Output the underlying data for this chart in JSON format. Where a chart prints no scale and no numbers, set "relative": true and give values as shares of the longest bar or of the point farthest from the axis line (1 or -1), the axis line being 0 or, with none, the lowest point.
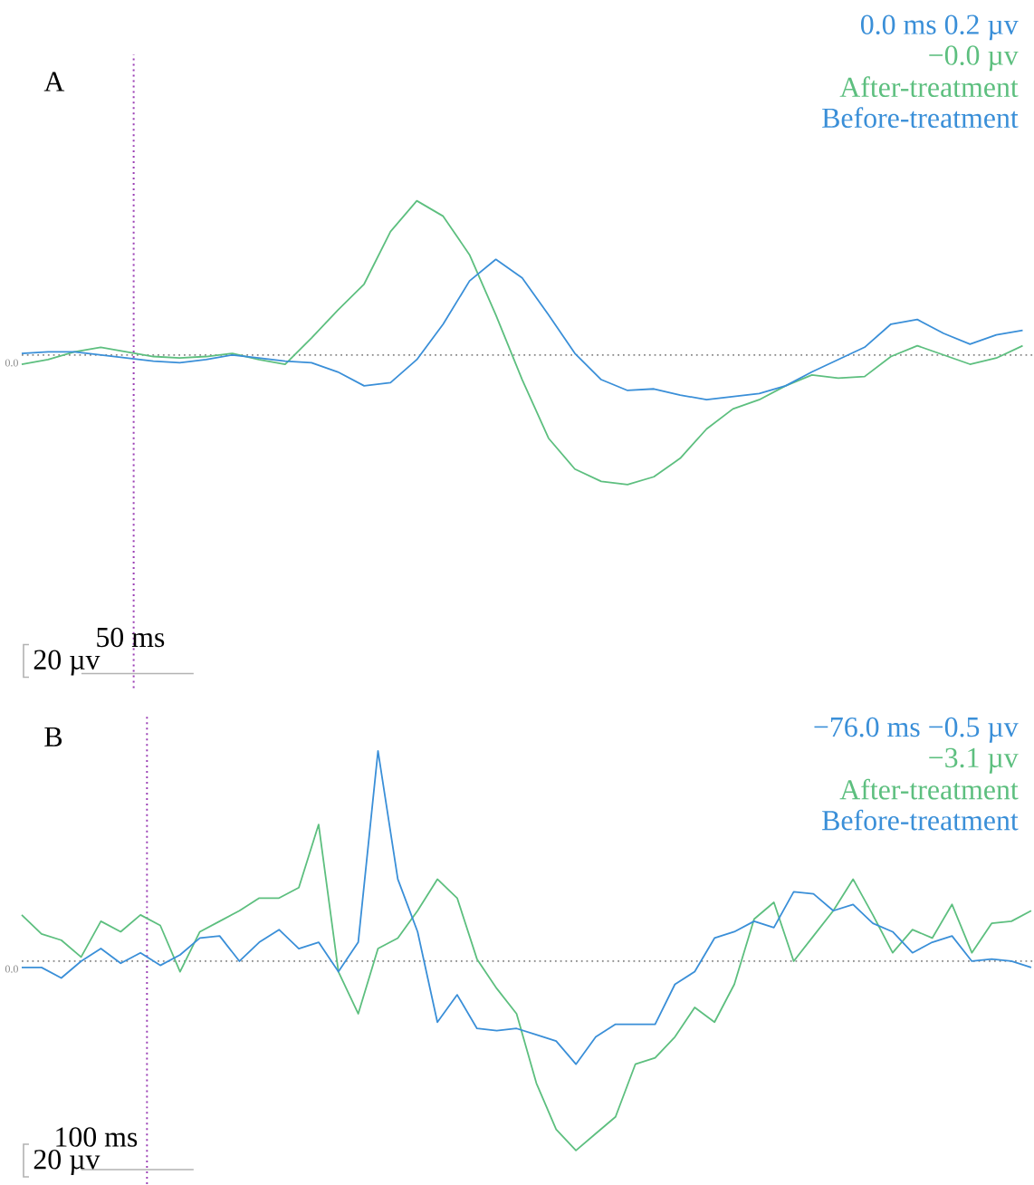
{
  "chart_data": [
    {
      "type": "line",
      "title": "A",
      "relative": true,
      "legend": "top right",
      "categories": [
        null,
        null,
        null,
        null,
        null,
        null,
        null,
        null,
        null,
        null,
        null,
        null,
        null,
        null,
        null,
        null,
        null,
        null,
        null,
        null,
        null,
        null,
        null,
        null,
        null,
        null,
        null,
        null,
        null,
        null,
        null,
        null,
        null,
        null,
        null,
        null,
        null,
        null,
        null
      ],
      "series": [
        {
          "name": "After-treatment",
          "color": "#5dbf7f",
          "values": [
            -0.06,
            -0.03,
            0.02,
            0.05,
            0.02,
            -0.01,
            -0.02,
            -0.01,
            0.01,
            -0.03,
            -0.06,
            0.11,
            0.29,
            0.46,
            0.8,
            1,
            0.9,
            0.65,
            0.26,
            -0.16,
            -0.54,
            -0.74,
            -0.82,
            -0.84,
            -0.79,
            -0.67,
            -0.48,
            -0.35,
            -0.29,
            -0.2,
            -0.13,
            -0.15,
            -0.14,
            -0.01,
            0.06,
            0,
            -0.06,
            -0.02,
            0.06
          ]
        },
        {
          "name": "Before-treatment",
          "color": "#3a8fd8",
          "values": [
            0.01,
            0.02,
            0.02,
            0,
            -0.02,
            -0.04,
            -0.05,
            -0.03,
            0,
            -0.02,
            -0.04,
            -0.05,
            -0.11,
            -0.2,
            -0.18,
            -0.03,
            0.2,
            0.48,
            0.62,
            0.5,
            0.26,
            0.01,
            -0.16,
            -0.23,
            -0.22,
            -0.26,
            -0.29,
            -0.27,
            -0.25,
            -0.2,
            -0.11,
            -0.03,
            0.05,
            0.2,
            0.23,
            0.14,
            0.07,
            0.13,
            0.16
          ]
        }
      ],
      "ref_lines": [
        {
          "axis": "y",
          "value": 0,
          "label": "0.0",
          "color": "#888888",
          "line_style": "dotted"
        }
      ],
      "annotations": [
        "0.0 ms 0.2 µv",
        "−0.0 µv",
        "50 ms",
        "20 µv"
      ]
    },
    {
      "type": "line",
      "title": "B",
      "relative": true,
      "legend": "top right",
      "categories": [
        null,
        null,
        null,
        null,
        null,
        null,
        null,
        null,
        null,
        null,
        null,
        null,
        null,
        null,
        null,
        null,
        null,
        null,
        null,
        null,
        null,
        null,
        null,
        null,
        null,
        null,
        null,
        null,
        null,
        null,
        null,
        null,
        null,
        null,
        null,
        null,
        null,
        null,
        null,
        null,
        null,
        null,
        null,
        null,
        null,
        null,
        null,
        null,
        null,
        null,
        null,
        null
      ],
      "series": [
        {
          "name": "After-treatment",
          "color": "#5dbf7f",
          "values": [
            0.22,
            0.13,
            0.1,
            0.02,
            0.19,
            0.14,
            0.22,
            0.17,
            -0.05,
            0.14,
            0.19,
            0.24,
            0.3,
            0.3,
            0.35,
            0.65,
            -0.05,
            -0.25,
            0.06,
            0.11,
            0.24,
            0.39,
            0.3,
            0.01,
            -0.13,
            -0.25,
            -0.58,
            -0.8,
            -0.9,
            -0.82,
            -0.74,
            -0.49,
            -0.46,
            -0.36,
            -0.22,
            -0.29,
            -0.11,
            0.2,
            0.28,
            0,
            0.12,
            0.24,
            0.39,
            0.22,
            0.04,
            0.15,
            0.11,
            0.27,
            0.04,
            0.18,
            0.19,
            0.24
          ]
        },
        {
          "name": "Before-treatment",
          "color": "#3a8fd8",
          "values": [
            -0.03,
            -0.03,
            -0.08,
            0,
            0.06,
            -0.01,
            0.04,
            -0.02,
            0.03,
            0.11,
            0.12,
            0,
            0.09,
            0.15,
            0.06,
            0.09,
            -0.05,
            0.09,
            1,
            0.39,
            0.14,
            -0.29,
            -0.16,
            -0.32,
            -0.33,
            -0.32,
            -0.35,
            -0.38,
            -0.49,
            -0.36,
            -0.3,
            -0.3,
            -0.3,
            -0.11,
            -0.05,
            0.11,
            0.14,
            0.19,
            0.16,
            0.33,
            0.32,
            0.24,
            0.27,
            0.18,
            0.14,
            0.04,
            0.09,
            0.12,
            0,
            0.01,
            0,
            -0.03
          ]
        }
      ],
      "ref_lines": [
        {
          "axis": "y",
          "value": 0,
          "label": "0.0",
          "color": "#888888",
          "line_style": "dotted"
        }
      ],
      "annotations": [
        "−76.0 ms −0.5 µv",
        "−3.1 µv",
        "100 ms",
        "20 µv"
      ]
    }
  ]
}
